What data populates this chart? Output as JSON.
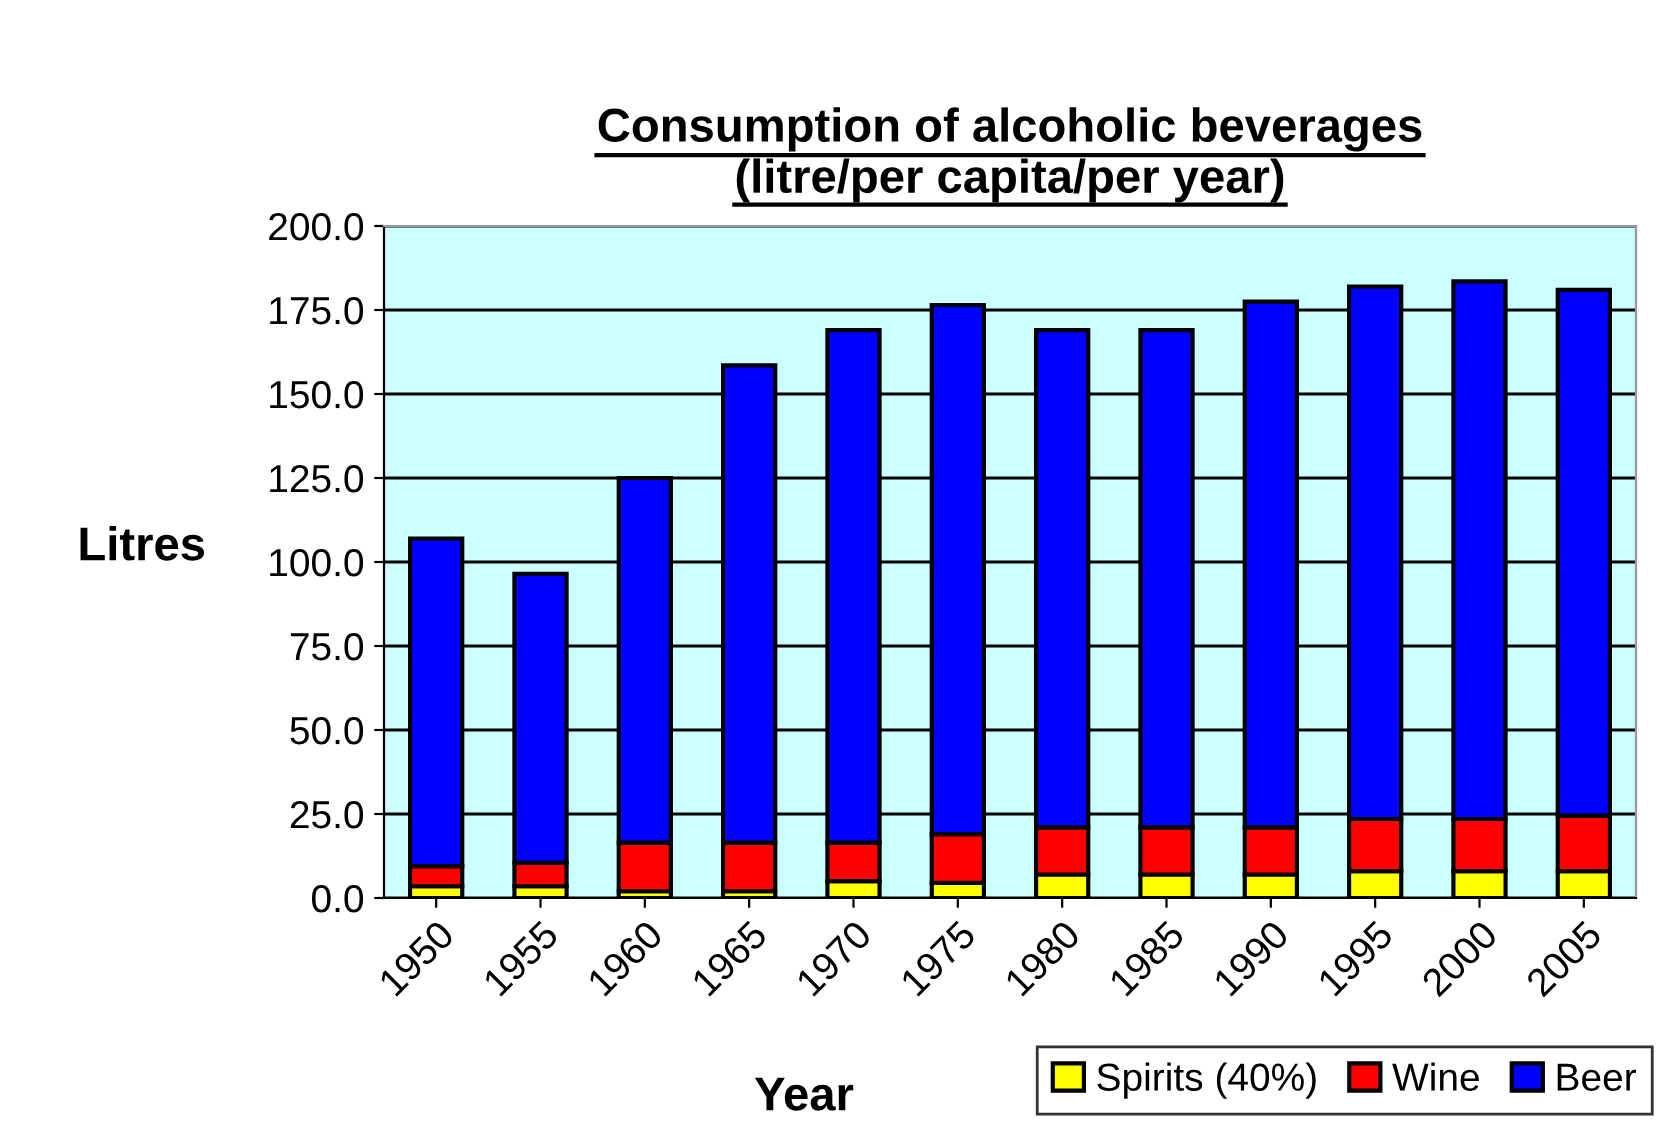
{
  "chart_data": {
    "type": "bar",
    "stacked": true,
    "title": "Consumption of alcoholic beverages\n(litre/per capita/per year)",
    "xlabel": "Year",
    "ylabel": "Litres",
    "categories": [
      "1950",
      "1955",
      "1960",
      "1965",
      "1970",
      "1975",
      "1980",
      "1985",
      "1990",
      "1995",
      "2000",
      "2005"
    ],
    "series": [
      {
        "name": "Spirits (40%)",
        "color": "#ffff00",
        "values": [
          3.5,
          3.5,
          2,
          2,
          5,
          4.5,
          7,
          7,
          7,
          8,
          8,
          8
        ]
      },
      {
        "name": "Wine",
        "color": "#ff0000",
        "values": [
          6,
          7,
          14.5,
          14.5,
          11.5,
          14.5,
          14,
          14,
          14,
          15.5,
          15.5,
          16.5
        ]
      },
      {
        "name": "Beer",
        "color": "#0000ff",
        "values": [
          97.5,
          86,
          108.5,
          142,
          152.5,
          157.5,
          148,
          148,
          156.5,
          158.5,
          160,
          156.5
        ]
      }
    ],
    "ylim": [
      0,
      200
    ],
    "yticks": [
      {
        "value": 0,
        "label": "0.0"
      },
      {
        "value": 25,
        "label": "25.0"
      },
      {
        "value": 50,
        "label": "50.0"
      },
      {
        "value": 75,
        "label": "75.0"
      },
      {
        "value": 100,
        "label": "100.0"
      },
      {
        "value": 125,
        "label": "125.0"
      },
      {
        "value": 150,
        "label": "150.0"
      },
      {
        "value": 175,
        "label": "175.0"
      },
      {
        "value": 200,
        "label": "200.0"
      }
    ],
    "grid": "y",
    "legend": "bottom right"
  }
}
